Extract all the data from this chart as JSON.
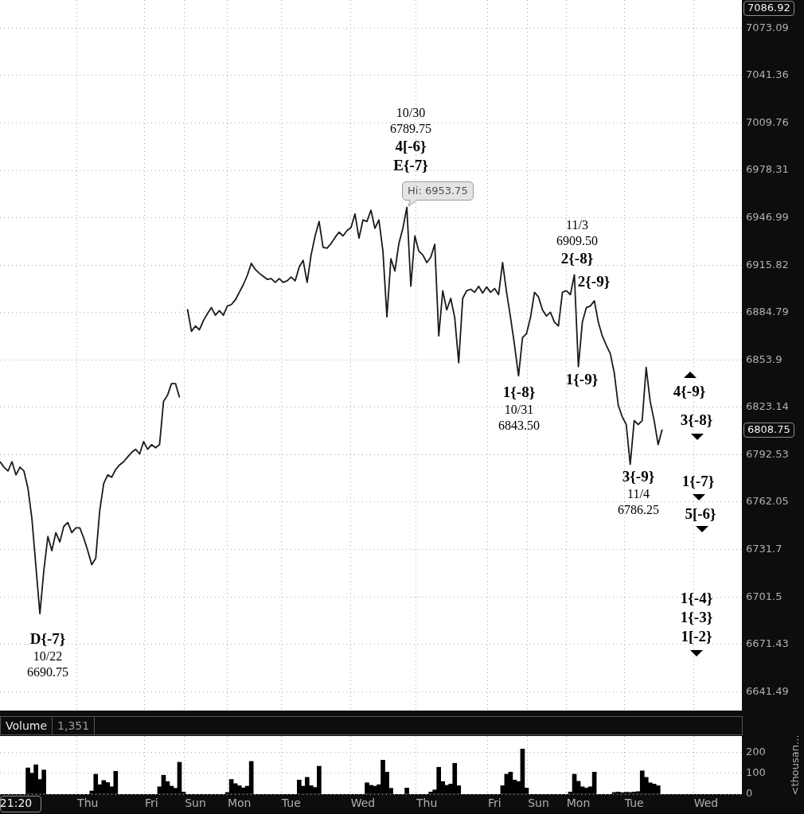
{
  "chart_data": [
    {
      "type": "line",
      "categories": [
        null,
        null,
        null,
        null,
        "21:20",
        null,
        null,
        null,
        null,
        null,
        null,
        null,
        null,
        null,
        null,
        null,
        null,
        null,
        null,
        null,
        null,
        null,
        "Thu",
        null,
        null,
        null,
        null,
        null,
        null,
        null,
        null,
        null,
        null,
        null,
        null,
        null,
        null,
        null,
        "Fri",
        null,
        null,
        null,
        null,
        null,
        null,
        null,
        null,
        null,
        null,
        "Sun",
        null,
        null,
        null,
        null,
        null,
        null,
        null,
        null,
        null,
        null,
        "Mon",
        null,
        null,
        null,
        null,
        null,
        null,
        null,
        null,
        null,
        null,
        null,
        null,
        "Tue",
        null,
        null,
        null,
        null,
        null,
        null,
        null,
        null,
        null,
        null,
        null,
        null,
        null,
        null,
        null,
        null,
        null,
        "Wed",
        null,
        null,
        null,
        null,
        null,
        null,
        null,
        null,
        null,
        null,
        null,
        null,
        null,
        null,
        null,
        "Thu",
        null,
        null,
        null,
        null,
        null,
        null,
        null,
        null,
        null,
        null,
        null,
        null,
        null,
        null,
        null,
        null,
        "Fri",
        null,
        null,
        null,
        null,
        null,
        null,
        null,
        null,
        null,
        null,
        "Sun",
        null,
        null,
        null,
        null,
        null,
        null,
        null,
        null,
        null,
        "Mon",
        null,
        null,
        null,
        null,
        null,
        null,
        null,
        null,
        null,
        null,
        null,
        null,
        null,
        "Tue",
        null,
        null,
        null,
        null,
        null,
        null,
        null,
        null,
        null,
        null,
        null,
        null,
        null,
        null,
        null,
        null,
        null,
        "Wed",
        null,
        null,
        null,
        null,
        null,
        null,
        null,
        null,
        null
      ],
      "values": [
        6788,
        6784.5,
        6782,
        6788,
        6779.5,
        6784.5,
        6782,
        6771,
        6751.5,
        6721,
        6690.75,
        6718.5,
        6740,
        6731,
        6742.5,
        6736.5,
        6746.5,
        6749,
        6742.5,
        6745.5,
        6745.5,
        6739,
        6731,
        6722,
        6726,
        6756.5,
        6774,
        6779.5,
        6778,
        6783,
        6786,
        6788,
        6791,
        6794,
        6796,
        6793,
        6801,
        6796,
        6799,
        6797,
        6799,
        6827,
        6831,
        6838.5,
        6838.5,
        6829.5,
        null,
        6887,
        6872.5,
        6876,
        6873.5,
        6879.5,
        6884,
        6888,
        6883,
        6886,
        6883,
        6889,
        6890,
        6893,
        6898,
        6903,
        6909,
        6917,
        6913,
        6910.5,
        6908.5,
        6906.5,
        6907,
        6904.5,
        6907,
        6904.5,
        6905.5,
        6908,
        6905.5,
        6914.5,
        6919,
        6904.5,
        6922.5,
        6935,
        6944.5,
        6927.5,
        6927,
        6930,
        6934,
        6937.5,
        6935,
        6938.5,
        6940.5,
        6949.5,
        6933.5,
        6945.5,
        6944.5,
        6952,
        6940,
        6945.5,
        6925,
        6882,
        6920,
        6912,
        6930,
        6940,
        6953.75,
        6902,
        6935,
        6925,
        6922.5,
        6917.5,
        6921,
        6929.5,
        6869.5,
        6899,
        6886.5,
        6894,
        6881.5,
        6852,
        6894,
        6899,
        6900,
        6898,
        6902,
        6897.5,
        6901.5,
        6898,
        6900.5,
        6896.5,
        6917.5,
        6898,
        6881.5,
        6863.5,
        6843.5,
        6868.5,
        6871,
        6881.5,
        6898,
        6895,
        6886.5,
        6882.5,
        6885,
        6878.5,
        6876,
        6898,
        6899,
        6896.5,
        6909.5,
        6849.5,
        6878.5,
        6888,
        6889,
        6892.5,
        6878.5,
        6869.5,
        6863.5,
        6858,
        6845.5,
        6824.5,
        6817,
        6812,
        6786.25,
        6814.5,
        6812,
        6814.5,
        6849,
        6827,
        6814.5,
        6799,
        6808.75,
        null,
        null,
        null,
        null,
        null,
        null,
        null,
        null,
        null,
        null,
        null,
        null,
        null,
        null,
        null,
        null,
        null,
        null,
        null,
        null
      ],
      "color": "#1a1a1a",
      "log": true,
      "ylim": [
        6629.6,
        7092
      ],
      "yticks": [
        6641.49,
        6671.43,
        6701.5,
        6731.7,
        6762.05,
        6792.53,
        6808.75,
        6823.14,
        6853.9,
        6884.79,
        6915.82,
        6946.99,
        6978.31,
        7009.76,
        7041.36,
        7073.09,
        7086.92
      ],
      "grid": true,
      "tick_labels": "y",
      "annotations": [
        "Hi: 6953.75",
        "10/30\n6789.75\n4[-6}\nE{-7}",
        "11/3\n6909.50\n2{-8}",
        "2{-9}",
        "1{-9}",
        "1{-8}\n10/31\n6843.50",
        "3{-9}\n11/4\n6786.25",
        "D{-7}\n10/22\n6690.75",
        "4{-9}",
        "3{-8}",
        "1{-7}",
        "5[-6}",
        "1{-4}\n1{-3}\n1[-2}"
      ]
    },
    {
      "type": "bar",
      "title": "Volume",
      "subtitle": "1,351",
      "ylabel": "<thousan...",
      "categories": [
        null,
        null,
        null,
        null,
        "21:20",
        null,
        null,
        null,
        null,
        null,
        null,
        null,
        null,
        null,
        null,
        null,
        null,
        null,
        null,
        null,
        null,
        null,
        "Thu",
        null,
        null,
        null,
        null,
        null,
        null,
        null,
        null,
        null,
        null,
        null,
        null,
        null,
        null,
        null,
        "Fri",
        null,
        null,
        null,
        null,
        null,
        null,
        null,
        null,
        null,
        null,
        "Sun",
        null,
        null,
        null,
        null,
        null,
        null,
        null,
        null,
        null,
        null,
        "Mon",
        null,
        null,
        null,
        null,
        null,
        null,
        null,
        null,
        null,
        null,
        null,
        null,
        "Tue",
        null,
        null,
        null,
        null,
        null,
        null,
        null,
        null,
        null,
        null,
        null,
        null,
        null,
        null,
        null,
        null,
        null,
        "Wed",
        null,
        null,
        null,
        null,
        null,
        null,
        null,
        null,
        null,
        null,
        null,
        null,
        null,
        null,
        null,
        "Thu",
        null,
        null,
        null,
        null,
        null,
        null,
        null,
        null,
        null,
        null,
        null,
        null,
        null,
        null,
        null,
        null,
        "Fri",
        null,
        null,
        null,
        null,
        null,
        null,
        null,
        null,
        null,
        null,
        "Sun",
        null,
        null,
        null,
        null,
        null,
        null,
        null,
        null,
        null,
        "Mon",
        null,
        null,
        null,
        null,
        null,
        null,
        null,
        null,
        null,
        null,
        null,
        null,
        null,
        "Tue",
        null,
        null,
        null,
        null,
        null,
        null,
        null,
        null,
        null,
        null,
        null,
        null,
        null,
        null,
        null,
        null,
        null,
        "Wed",
        null,
        null,
        null,
        null,
        null,
        null,
        null,
        null,
        null
      ],
      "values": [
        null,
        null,
        null,
        null,
        null,
        null,
        null,
        125,
        100,
        140,
        70,
        115,
        null,
        null,
        null,
        null,
        null,
        null,
        null,
        null,
        null,
        null,
        null,
        15,
        95,
        45,
        65,
        55,
        35,
        109,
        null,
        null,
        null,
        null,
        null,
        null,
        null,
        null,
        null,
        null,
        35,
        90,
        60,
        38,
        28,
        152,
        10,
        null,
        null,
        null,
        null,
        null,
        null,
        null,
        null,
        null,
        null,
        8,
        70,
        50,
        40,
        30,
        38,
        156,
        null,
        null,
        null,
        null,
        null,
        null,
        null,
        null,
        null,
        null,
        null,
        67,
        38,
        80,
        40,
        32,
        133,
        null,
        null,
        null,
        null,
        null,
        null,
        null,
        null,
        null,
        null,
        null,
        54,
        42,
        38,
        45,
        162,
        105,
        28,
        null,
        null,
        null,
        29,
        null,
        null,
        null,
        null,
        null,
        10,
        20,
        128,
        60,
        42,
        48,
        147,
        40,
        null,
        null,
        null,
        null,
        null,
        null,
        null,
        null,
        null,
        null,
        40,
        95,
        105,
        67,
        60,
        215,
        29,
        null,
        null,
        null,
        null,
        null,
        null,
        null,
        null,
        null,
        null,
        10,
        95,
        61,
        35,
        29,
        35,
        105,
        null,
        null,
        null,
        null,
        8,
        10,
        7,
        9,
        8,
        10,
        12,
        111,
        80,
        54,
        48,
        40,
        null,
        null,
        null,
        null,
        null,
        null,
        null,
        null,
        null,
        null,
        null,
        null,
        null,
        null,
        null,
        null,
        null,
        null,
        null,
        null,
        null
      ],
      "color": "#000000",
      "ylim": [
        0,
        277
      ],
      "yticks": [
        0,
        100,
        200
      ],
      "grid": true
    }
  ]
}
